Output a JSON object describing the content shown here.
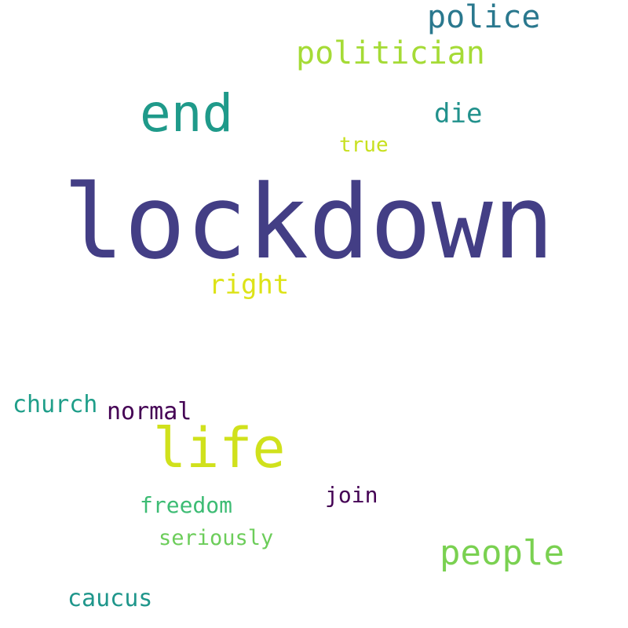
{
  "words": [
    {
      "text": "lockdown",
      "color": "#433e85"
    },
    {
      "text": "life",
      "color": "#d0e11c"
    },
    {
      "text": "end",
      "color": "#1f9a8a"
    },
    {
      "text": "people",
      "color": "#7ad151"
    },
    {
      "text": "police",
      "color": "#2a788e"
    },
    {
      "text": "politician",
      "color": "#a5db36"
    },
    {
      "text": "right",
      "color": "#dde318"
    },
    {
      "text": "die",
      "color": "#21918c"
    },
    {
      "text": "church",
      "color": "#1f9e89"
    },
    {
      "text": "normal",
      "color": "#440154"
    },
    {
      "text": "caucus",
      "color": "#1f968b"
    },
    {
      "text": "freedom",
      "color": "#3dbc74"
    },
    {
      "text": "join",
      "color": "#440154"
    },
    {
      "text": "true",
      "color": "#c8e020"
    },
    {
      "text": "seriously",
      "color": "#6ccd5a"
    }
  ]
}
